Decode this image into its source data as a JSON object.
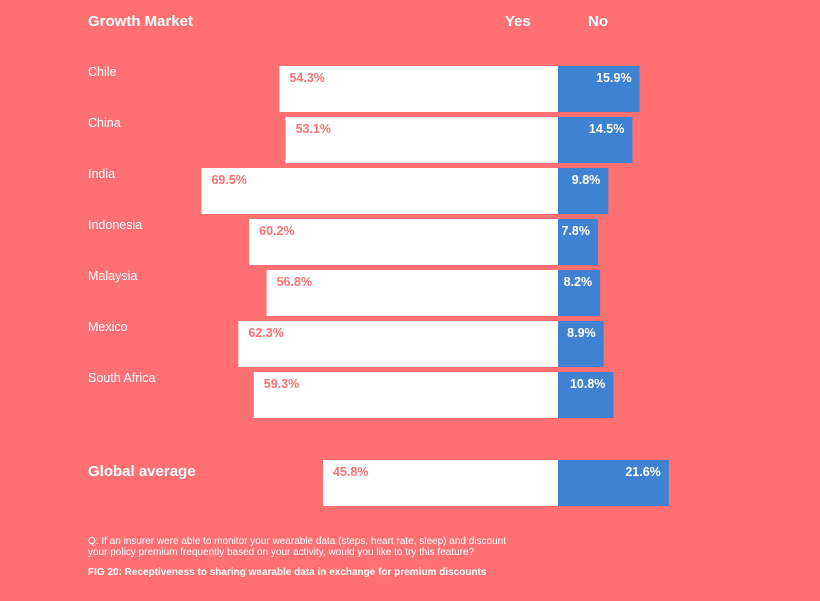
{
  "header": {
    "market": "Growth Market",
    "yes": "Yes",
    "no": "No"
  },
  "colors": {
    "background": "#ff7073",
    "yes_bar": "#ffffff",
    "no_bar": "#3f82d1",
    "yes_text": "#ff7073",
    "no_text": "#ffffff"
  },
  "chart_data": {
    "type": "bar",
    "orientation": "horizontal-diverging",
    "categories": [
      "Chile",
      "China",
      "India",
      "Indonesia",
      "Malaysia",
      "Mexico",
      "South Africa",
      "Global average"
    ],
    "series": [
      {
        "name": "Yes",
        "values": [
          54.3,
          53.1,
          69.5,
          60.2,
          56.8,
          62.3,
          59.3,
          45.8
        ],
        "labels": [
          "54.3%",
          "53.1%",
          "69.5%",
          "60.2%",
          "56.8%",
          "62.3%",
          "59.3%",
          "45.8%"
        ]
      },
      {
        "name": "No",
        "values": [
          15.9,
          14.5,
          9.8,
          7.8,
          8.2,
          8.9,
          10.8,
          21.6
        ],
        "labels": [
          "15.9%",
          "14.5%",
          "9.8%",
          "7.8%",
          "8.2%",
          "8.9%",
          "10.8%",
          "21.6%"
        ]
      }
    ],
    "unit": "%",
    "grid": false
  },
  "footer": {
    "question": "Q: If an insurer were able to monitor your wearable data (steps, heart rate, sleep) and discount your policy premium frequently based on your activity, would you like to try this feature?",
    "caption": "FIG 20: Receptiveness to sharing wearable data in exchange for premium discounts"
  }
}
